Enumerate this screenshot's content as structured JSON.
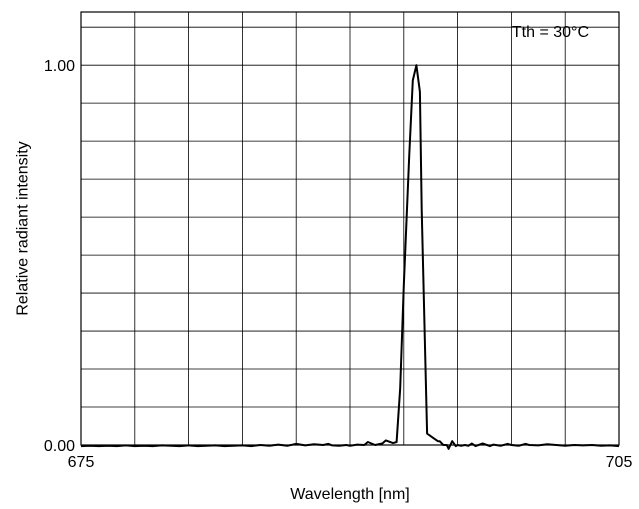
{
  "chart_data": {
    "type": "line",
    "xlabel": "Wavelength [nm]",
    "ylabel": "Relative radiant intensity",
    "annotation": "Tth = 30°C",
    "xlim": [
      675,
      705
    ],
    "ylim": [
      0.0,
      1.14
    ],
    "x_ticks": [
      {
        "value": 675,
        "label": "675"
      },
      {
        "value": 705,
        "label": "705"
      }
    ],
    "y_ticks": [
      {
        "value": 0.0,
        "label": "0.00"
      },
      {
        "value": 1.0,
        "label": "1.00"
      }
    ],
    "grid": true,
    "x_grid_step": 3,
    "y_grid_step": 0.1,
    "line_color": "#000000",
    "series": [
      {
        "x": [
          675.0,
          675.5,
          676.0,
          676.5,
          677.0,
          677.5,
          678.0,
          678.5,
          679.0,
          679.5,
          680.0,
          680.5,
          681.0,
          681.5,
          682.0,
          682.5,
          683.0,
          683.5,
          684.0,
          684.5,
          685.0,
          685.5,
          686.0,
          686.5,
          687.0,
          687.5,
          688.0,
          688.5,
          688.8,
          689.0,
          689.4,
          689.8,
          690.0,
          690.4,
          690.8,
          691.0,
          691.4,
          691.8,
          692.0,
          692.4,
          692.6,
          692.8,
          693.0,
          693.3,
          693.5,
          693.7,
          693.9,
          694.0,
          694.3,
          694.6,
          694.9,
          695.0,
          695.2,
          695.4,
          695.5,
          695.7,
          695.9,
          696.0,
          696.2,
          696.4,
          696.6,
          696.8,
          697.0,
          697.4,
          697.8,
          698.0,
          698.4,
          698.8,
          699.0,
          699.4,
          699.8,
          700.0,
          700.5,
          701.0,
          701.5,
          702.0,
          702.5,
          703.0,
          703.5,
          704.0,
          704.5,
          705.0
        ],
        "y": [
          -0.003,
          -0.002,
          -0.003,
          -0.002,
          -0.003,
          -0.001,
          -0.003,
          -0.002,
          -0.003,
          -0.001,
          -0.002,
          -0.003,
          -0.001,
          -0.003,
          -0.002,
          -0.001,
          -0.003,
          -0.002,
          -0.001,
          -0.003,
          0.0,
          -0.002,
          0.001,
          -0.002,
          0.003,
          -0.001,
          0.002,
          0.0,
          0.003,
          -0.001,
          -0.002,
          0.0,
          -0.002,
          0.001,
          0.0,
          0.008,
          0.0,
          0.004,
          0.012,
          0.005,
          0.008,
          0.15,
          0.42,
          0.76,
          0.96,
          1.0,
          0.93,
          0.62,
          0.03,
          0.02,
          0.01,
          0.01,
          0.0,
          0.0,
          -0.01,
          0.01,
          -0.003,
          0.0,
          -0.002,
          0.0,
          -0.002,
          0.004,
          -0.003,
          0.004,
          -0.003,
          0.001,
          -0.002,
          0.003,
          0.0,
          -0.002,
          0.003,
          0.0,
          -0.001,
          0.002,
          0.0,
          -0.002,
          0.0,
          -0.001,
          0.0,
          -0.002,
          -0.001,
          -0.003
        ]
      }
    ]
  }
}
